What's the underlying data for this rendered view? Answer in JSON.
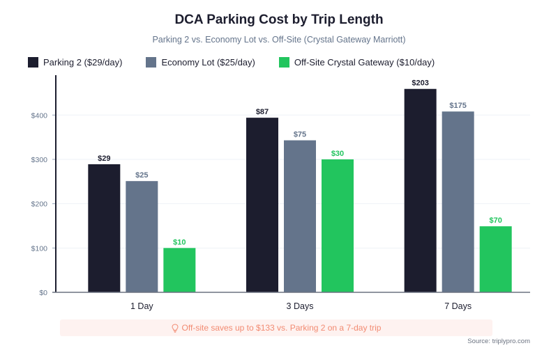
{
  "colors": {
    "parking2": "#1c1d2e",
    "economy": "#64748b",
    "offsite": "#22c55e",
    "axis": "#1c1d2e",
    "grid": "#eef2f7",
    "tick_label": "#64748b",
    "callout_text": "#f28b72",
    "callout_bg": "#fef2f0"
  },
  "chart_data": {
    "type": "bar",
    "title": "DCA Parking Cost by Trip Length",
    "subtitle": "Parking 2 vs. Economy Lot vs. Off-Site (Crystal Gateway Marriott)",
    "xlabel": "",
    "ylabel": "",
    "categories": [
      "1 Day",
      "3 Days",
      "7 Days"
    ],
    "ylim": [
      0,
      490
    ],
    "yticks": [
      0,
      100,
      200,
      300,
      400
    ],
    "ytick_labels": [
      "$0",
      "$100",
      "$200",
      "$300",
      "$400"
    ],
    "grid": true,
    "legend_position": "top-left",
    "series": [
      {
        "name": "Parking 2 ($29/day)",
        "key": "parking2",
        "values": [
          29,
          87,
          203
        ],
        "labels": [
          "$29",
          "$87",
          "$203"
        ],
        "rendered_axis_values": [
          289,
          394,
          459
        ]
      },
      {
        "name": "Economy Lot ($25/day)",
        "key": "economy",
        "values": [
          25,
          75,
          175
        ],
        "labels": [
          "$25",
          "$75",
          "$175"
        ],
        "rendered_axis_values": [
          251,
          343,
          408
        ]
      },
      {
        "name": "Off-Site Crystal Gateway ($10/day)",
        "key": "offsite",
        "values": [
          10,
          30,
          70
        ],
        "labels": [
          "$10",
          "$30",
          "$70"
        ],
        "rendered_axis_values": [
          100,
          300,
          149
        ]
      }
    ],
    "annotation": "Off-site saves up to $133 vs. Parking 2 on a 7-day trip"
  },
  "footer": {
    "callout_icon": "lightbulb-icon",
    "callout_text": "Off-site saves up to $133 vs. Parking 2 on a 7-day trip",
    "source": "Source: triplypro.com"
  }
}
